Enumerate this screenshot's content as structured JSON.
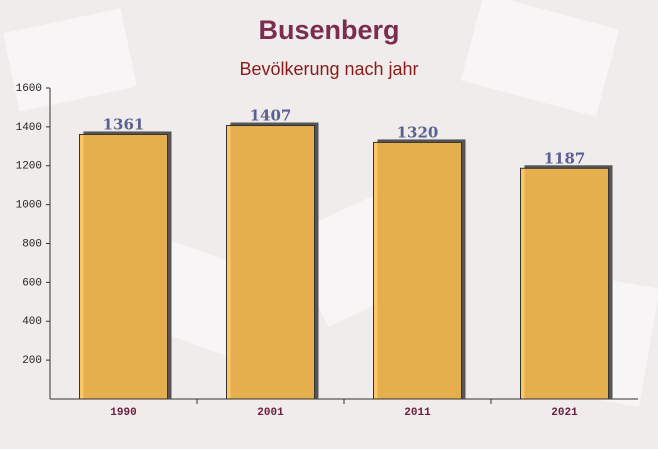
{
  "chart_data": {
    "type": "bar",
    "title": "Busenberg",
    "subtitle": "Bevölkerung nach jahr",
    "categories": [
      "1990",
      "2001",
      "2011",
      "2021"
    ],
    "values": [
      1361,
      1407,
      1320,
      1187
    ],
    "color": "#ffc04d",
    "ylim": [
      0,
      1600
    ],
    "yticks": [
      200,
      400,
      600,
      800,
      1000,
      1200,
      1400,
      1600
    ],
    "grid": false
  }
}
